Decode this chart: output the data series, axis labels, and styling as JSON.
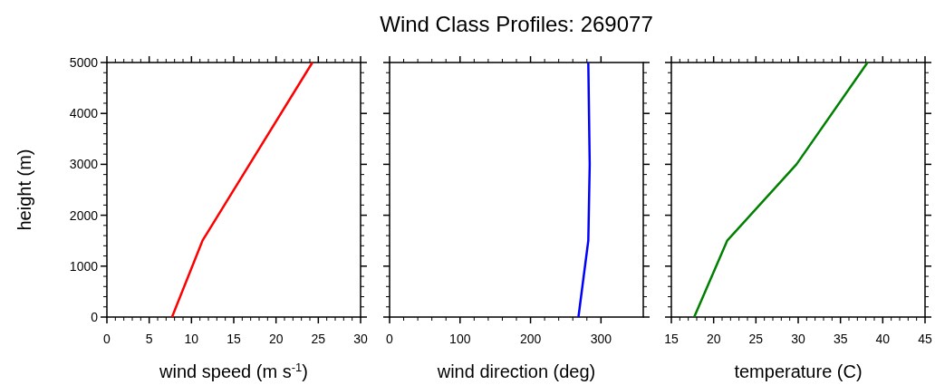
{
  "chart_data": [
    {
      "type": "line",
      "xlabel": "wind speed (m s$^{-1}$)",
      "ylabel": "height (m)",
      "xlim": [
        0,
        30
      ],
      "xticks": [
        0,
        5,
        10,
        15,
        20,
        25,
        30
      ],
      "ylim": [
        0,
        5000
      ],
      "yticks": [
        0,
        1000,
        2000,
        3000,
        4000,
        5000
      ],
      "series": [
        {
          "color": "#ff0000",
          "x": [
            7.7,
            11.3,
            24.3
          ],
          "values": [
            0,
            1500,
            5000
          ]
        }
      ]
    },
    {
      "type": "line",
      "title": "Wind Class Profiles: 269077",
      "xlabel": "wind direction (deg)",
      "xlim": [
        0,
        360
      ],
      "xticks": [
        0,
        100,
        200,
        300
      ],
      "ylim": [
        0,
        5000
      ],
      "yticks": [
        0,
        1000,
        2000,
        3000,
        4000,
        5000
      ],
      "tick_labels": "x",
      "series": [
        {
          "color": "#0000ff",
          "x": [
            268,
            282,
            284,
            282
          ],
          "values": [
            0,
            1500,
            3000,
            5000
          ]
        }
      ]
    },
    {
      "type": "line",
      "xlabel": "temperature (C)",
      "xlim": [
        15,
        45
      ],
      "xticks": [
        15,
        20,
        25,
        30,
        35,
        40,
        45
      ],
      "ylim": [
        0,
        5000
      ],
      "yticks": [
        0,
        1000,
        2000,
        3000,
        4000,
        5000
      ],
      "tick_labels": "x",
      "series": [
        {
          "color": "#008000",
          "x": [
            17.7,
            21.6,
            29.8,
            38.2
          ],
          "values": [
            0,
            1500,
            3000,
            5000
          ]
        }
      ]
    }
  ]
}
